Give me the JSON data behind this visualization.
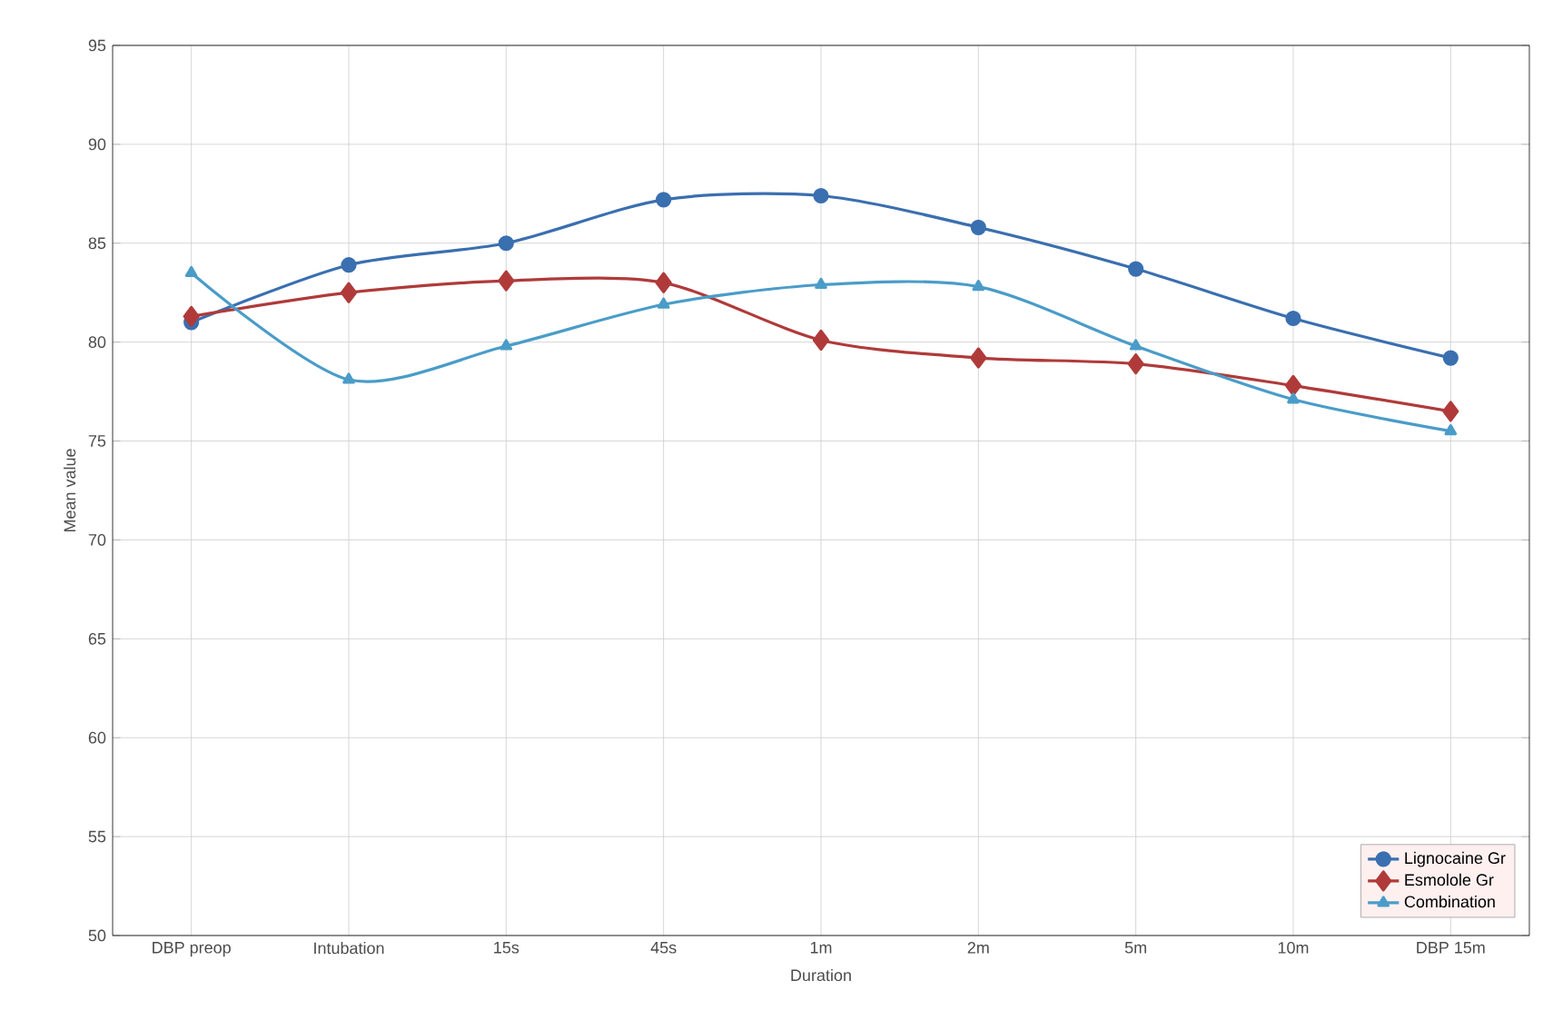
{
  "chart_data": {
    "type": "line",
    "xlabel": "Duration",
    "ylabel": "Mean value",
    "categories": [
      "DBP preop",
      "Intubation",
      "15s",
      "45s",
      "1m",
      "2m",
      "5m",
      "10m",
      "DBP 15m"
    ],
    "series": [
      {
        "name": "Lignocaine Gr",
        "color": "#3a6fb0",
        "marker": "circle",
        "values": [
          81,
          83.9,
          85,
          87.2,
          87.4,
          85.8,
          83.7,
          81.2,
          79.2
        ]
      },
      {
        "name": "Esmolole Gr",
        "color": "#b03a3a",
        "marker": "diamond",
        "values": [
          81.3,
          82.5,
          83.1,
          83,
          80.1,
          79.2,
          78.9,
          77.8,
          76.5
        ]
      },
      {
        "name": "Combination",
        "color": "#4a9cc8",
        "marker": "triangle",
        "values": [
          83.5,
          78.1,
          79.8,
          81.9,
          82.9,
          82.8,
          79.8,
          77.1,
          75.5
        ]
      }
    ],
    "ylim": [
      50,
      95
    ],
    "yticks": [
      50,
      55,
      60,
      65,
      70,
      75,
      80,
      85,
      90,
      95
    ],
    "grid": true,
    "legend": "bottom right"
  }
}
